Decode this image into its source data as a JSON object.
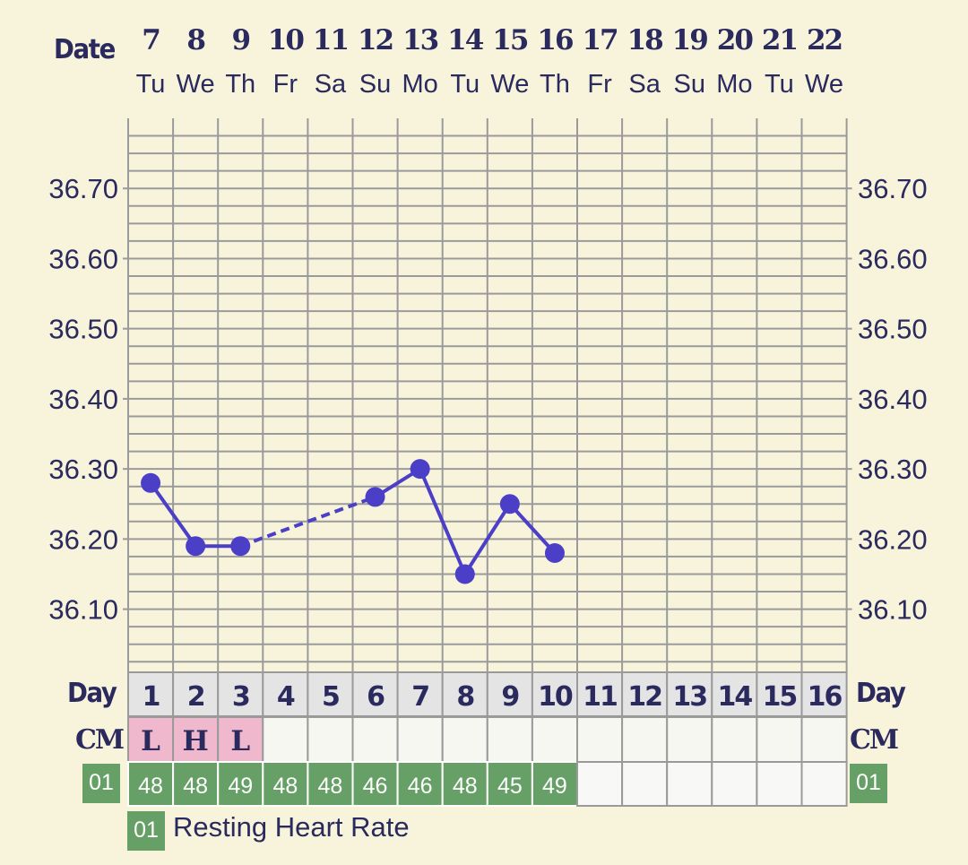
{
  "header": {
    "date_label": "Date",
    "day_label": "Day",
    "cm_label": "CM"
  },
  "colors": {
    "background": "#f8f4dc",
    "grid": "#9a9a9a",
    "line": "#4b3fc8",
    "text": "#2b2a5e",
    "day_row": "#e4e4e4",
    "cm_marked": "#f0b8cc",
    "cm_empty": "#f7f7f2",
    "hr_fill": "#66a066"
  },
  "chart_data": {
    "type": "line",
    "dates": [
      "7",
      "8",
      "9",
      "10",
      "11",
      "12",
      "13",
      "14",
      "15",
      "16",
      "17",
      "18",
      "19",
      "20",
      "21",
      "22"
    ],
    "weekdays": [
      "Tu",
      "We",
      "Th",
      "Fr",
      "Sa",
      "Su",
      "Mo",
      "Tu",
      "We",
      "Th",
      "Fr",
      "Sa",
      "Su",
      "Mo",
      "Tu",
      "We"
    ],
    "cycle_days": [
      "1",
      "2",
      "3",
      "4",
      "5",
      "6",
      "7",
      "8",
      "9",
      "10",
      "11",
      "12",
      "13",
      "14",
      "15",
      "16"
    ],
    "y_ticks": [
      "36.70",
      "36.60",
      "36.50",
      "36.40",
      "36.30",
      "36.20",
      "36.10"
    ],
    "ylim": [
      36.01,
      36.8
    ],
    "series": [
      {
        "values": [
          36.28,
          36.19,
          36.19,
          null,
          null,
          36.26,
          36.3,
          36.15,
          36.25,
          36.18,
          null,
          null,
          null,
          null,
          null,
          null
        ]
      }
    ],
    "gap_style": "dashed",
    "cm": [
      "L",
      "H",
      "L",
      "",
      "",
      "",
      "",
      "",
      "",
      "",
      "",
      "",
      "",
      "",
      "",
      ""
    ],
    "resting_heart_rate": [
      "48",
      "48",
      "49",
      "48",
      "48",
      "46",
      "46",
      "48",
      "45",
      "49",
      "",
      "",
      "",
      "",
      "",
      ""
    ],
    "grid": true
  },
  "legend": {
    "hr_code": "01",
    "hr_text": "Resting Heart Rate"
  }
}
